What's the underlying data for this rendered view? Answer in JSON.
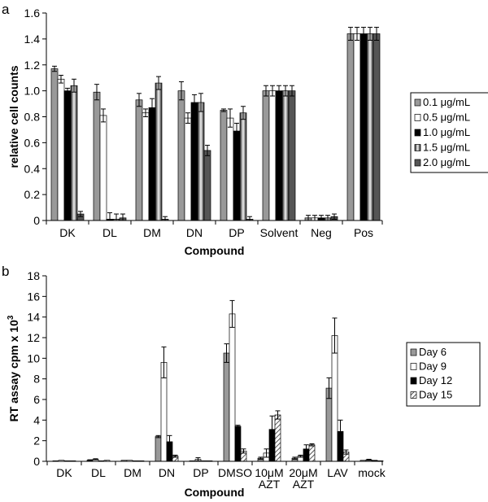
{
  "chart_data": [
    {
      "panel_label": "a",
      "type": "bar",
      "xlabel": "Compound",
      "ylabel": "relative cell counts",
      "ylim": [
        0,
        1.6
      ],
      "yticks": [
        "0",
        "0.2",
        "0.4",
        "0.6",
        "0.8",
        "1.0",
        "1.2",
        "1.4",
        "1.6"
      ],
      "categories": [
        "DK",
        "DL",
        "DM",
        "DN",
        "DP",
        "Solvent",
        "Neg",
        "Pos"
      ],
      "legend_position": "right",
      "series": [
        {
          "name": "0.1 μg/mL",
          "color": "#999999",
          "pattern": "solid",
          "values": [
            1.17,
            0.99,
            0.93,
            1.0,
            0.85,
            1.0,
            0.02,
            1.44
          ],
          "errors": [
            0.02,
            0.06,
            0.05,
            0.07,
            0.01,
            0.04,
            0.02,
            0.05
          ]
        },
        {
          "name": "0.5 μg/mL",
          "color": "#ffffff",
          "pattern": "solid",
          "values": [
            1.09,
            0.81,
            0.83,
            0.79,
            0.79,
            1.0,
            0.02,
            1.44
          ],
          "errors": [
            0.03,
            0.05,
            0.03,
            0.04,
            0.07,
            0.04,
            0.02,
            0.05
          ]
        },
        {
          "name": "1.0 μg/mL",
          "color": "#000000",
          "pattern": "solid",
          "values": [
            1.0,
            0.01,
            0.87,
            0.91,
            0.69,
            1.0,
            0.02,
            1.44
          ],
          "errors": [
            0.02,
            0.05,
            0.07,
            0.06,
            0.06,
            0.04,
            0.02,
            0.05
          ]
        },
        {
          "name": "1.5 μg/mL",
          "color": "#bbbbbb",
          "pattern": "gradient",
          "values": [
            1.04,
            0.01,
            1.06,
            0.91,
            0.83,
            1.0,
            0.02,
            1.44
          ],
          "errors": [
            0.05,
            0.04,
            0.05,
            0.07,
            0.05,
            0.04,
            0.02,
            0.05
          ]
        },
        {
          "name": "2.0 μg/mL",
          "color": "#555555",
          "pattern": "solid",
          "values": [
            0.05,
            0.02,
            0.01,
            0.54,
            0.01,
            1.0,
            0.03,
            1.44
          ],
          "errors": [
            0.02,
            0.03,
            0.02,
            0.04,
            0.02,
            0.04,
            0.02,
            0.05
          ]
        }
      ]
    },
    {
      "panel_label": "b",
      "type": "bar",
      "xlabel": "Compound",
      "ylabel": "RT assay cpm x 10",
      "ylabel_superscript": "3",
      "ylim": [
        0,
        18
      ],
      "yticks": [
        "0",
        "2",
        "4",
        "6",
        "8",
        "10",
        "12",
        "14",
        "16",
        "18"
      ],
      "categories": [
        [
          "DK"
        ],
        [
          "DL"
        ],
        [
          "DM"
        ],
        [
          "DN"
        ],
        [
          "DP"
        ],
        [
          "DMSO"
        ],
        [
          "10μM",
          "AZT"
        ],
        [
          "20μM",
          "AZT"
        ],
        [
          "LAV"
        ],
        [
          "mock"
        ]
      ],
      "legend_position": "right",
      "series": [
        {
          "name": "Day 6",
          "color": "#999999",
          "pattern": "solid",
          "values": [
            0.05,
            0.1,
            0.1,
            2.4,
            0.05,
            10.5,
            0.3,
            0.3,
            7.1,
            0.1
          ],
          "errors": [
            0,
            0.05,
            0,
            0.1,
            0,
            0.9,
            0.1,
            0.1,
            1.0,
            0
          ]
        },
        {
          "name": "Day 9",
          "color": "#ffffff",
          "pattern": "solid",
          "values": [
            0.1,
            0.2,
            0.1,
            9.6,
            0.2,
            14.3,
            0.8,
            0.5,
            12.2,
            0.15
          ],
          "errors": [
            0,
            0.05,
            0,
            1.5,
            0.15,
            1.3,
            0.4,
            0.1,
            1.7,
            0.05
          ]
        },
        {
          "name": "Day 12",
          "color": "#000000",
          "pattern": "solid",
          "values": [
            0.05,
            0.05,
            0.05,
            1.9,
            0.05,
            3.4,
            3.1,
            1.2,
            2.9,
            0.1
          ],
          "errors": [
            0,
            0,
            0,
            0.6,
            0,
            0.1,
            1.3,
            0.4,
            1.1,
            0
          ]
        },
        {
          "name": "Day 15",
          "color": "#cccccc",
          "pattern": "hatch",
          "values": [
            0.05,
            0.1,
            0.05,
            0.5,
            0.05,
            1.0,
            4.5,
            1.6,
            0.9,
            0.05
          ],
          "errors": [
            0,
            0,
            0,
            0.1,
            0,
            0.2,
            0.4,
            0.1,
            0.2,
            0
          ]
        }
      ]
    }
  ]
}
